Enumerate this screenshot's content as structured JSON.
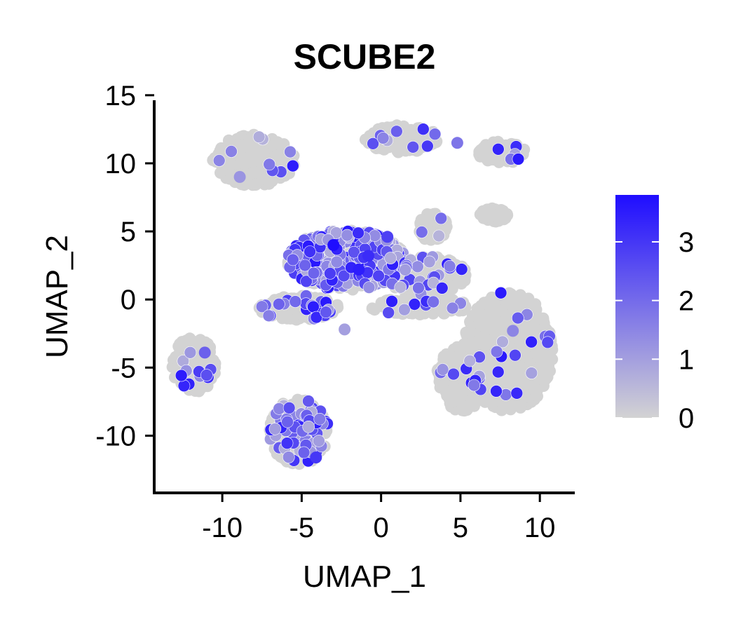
{
  "chart_data": {
    "type": "scatter",
    "title": "SCUBE2",
    "xlabel": "UMAP_1",
    "ylabel": "UMAP_2",
    "xlim": [
      -14.2,
      12.2
    ],
    "ylim": [
      -14.2,
      15.3
    ],
    "xticks": [
      -10,
      -5,
      0,
      5,
      10
    ],
    "xtick_labels": [
      "-10",
      "-5",
      "0",
      "5",
      "10"
    ],
    "yticks": [
      -10,
      -5,
      0,
      5,
      10,
      15
    ],
    "ytick_labels": [
      "-10",
      "-5",
      "0",
      "5",
      "10",
      "15"
    ],
    "grid": false,
    "legend_placement": "right",
    "colors": {
      "low": "#d3d3d3",
      "high": "#1f0dff"
    },
    "colorbar": {
      "min": 0,
      "max": 3.8,
      "ticks": [
        0,
        1,
        2,
        3
      ],
      "tick_labels": [
        "0",
        "1",
        "2",
        "3"
      ]
    },
    "clusters": [
      {
        "id": "top-left",
        "cx": -8.0,
        "cy": 10.2,
        "rx": 2.6,
        "ry": 1.9,
        "expr": 0.02
      },
      {
        "id": "top-right-a",
        "cx": 1.3,
        "cy": 11.8,
        "rx": 2.3,
        "ry": 1.0,
        "expr": 0.05
      },
      {
        "id": "top-right-b",
        "cx": 7.6,
        "cy": 10.8,
        "rx": 1.5,
        "ry": 0.8,
        "expr": 0.05
      },
      {
        "id": "small-stripe",
        "cx": 7.1,
        "cy": 6.2,
        "rx": 0.9,
        "ry": 0.5,
        "expr": 0.0
      },
      {
        "id": "central",
        "cx": -2.2,
        "cy": 2.9,
        "rx": 3.7,
        "ry": 2.2,
        "expr": 0.55
      },
      {
        "id": "central-east",
        "cx": 2.8,
        "cy": 1.8,
        "rx": 2.6,
        "ry": 1.4,
        "expr": 0.08
      },
      {
        "id": "upper-island",
        "cx": 3.3,
        "cy": 5.3,
        "rx": 0.9,
        "ry": 1.1,
        "expr": 0.03
      },
      {
        "id": "band-left",
        "cx": -5.2,
        "cy": -0.6,
        "rx": 2.5,
        "ry": 0.9,
        "expr": 0.12
      },
      {
        "id": "band-right",
        "cx": 2.5,
        "cy": -0.5,
        "rx": 3.2,
        "ry": 0.6,
        "expr": 0.05
      },
      {
        "id": "left",
        "cx": -11.8,
        "cy": -4.8,
        "rx": 1.4,
        "ry": 2.0,
        "expr": 0.04
      },
      {
        "id": "bottom",
        "cx": -5.2,
        "cy": -9.7,
        "rx": 1.9,
        "ry": 2.4,
        "expr": 0.25
      },
      {
        "id": "large-right",
        "cx": 8.0,
        "cy": -3.8,
        "rx": 2.8,
        "ry": 4.4,
        "expr": 0.03
      },
      {
        "id": "large-right-w",
        "cx": 5.2,
        "cy": -5.8,
        "rx": 1.7,
        "ry": 2.4,
        "expr": 0.03
      }
    ],
    "highlighted_points": [
      {
        "x": -11.1,
        "y": -3.9,
        "v": 2.2
      },
      {
        "x": -8.9,
        "y": 9.0,
        "v": 1.2
      },
      {
        "x": 8.3,
        "y": -2.3,
        "v": 1.5
      },
      {
        "x": -2.3,
        "y": -2.2,
        "v": 1.0
      },
      {
        "x": -4.1,
        "y": -11.6,
        "v": 3.0
      },
      {
        "x": -3.0,
        "y": 4.0,
        "v": 3.8
      },
      {
        "x": -1.4,
        "y": 2.2,
        "v": 3.5
      },
      {
        "x": -0.8,
        "y": 3.2,
        "v": 3.2
      },
      {
        "x": 0.4,
        "y": 4.6,
        "v": 2.8
      },
      {
        "x": 4.8,
        "y": 11.5,
        "v": 1.8
      }
    ]
  }
}
